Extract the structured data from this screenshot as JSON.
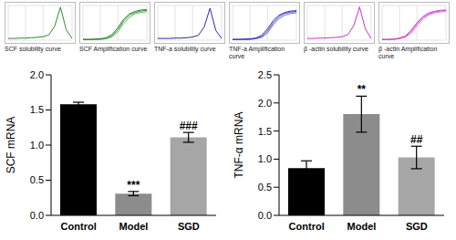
{
  "chart_data": [
    {
      "type": "line",
      "title": "SCF solubility curve",
      "x": [
        0,
        1,
        2,
        3,
        4,
        5,
        6,
        7,
        8,
        9,
        10,
        11
      ],
      "xlim": [
        0,
        11
      ],
      "ylim": [
        0,
        1
      ],
      "tick_labels": false,
      "grid": true,
      "series": [
        {
          "color": "#2e8b2e",
          "values": [
            0.05,
            0.05,
            0.06,
            0.06,
            0.07,
            0.08,
            0.1,
            0.15,
            0.4,
            0.95,
            0.3,
            0.05
          ]
        }
      ]
    },
    {
      "type": "line",
      "title": "SCF Amplification curve",
      "x": [
        0,
        1,
        2,
        3,
        4,
        5,
        6,
        7,
        8,
        9,
        10,
        11
      ],
      "xlim": [
        0,
        11
      ],
      "ylim": [
        0,
        1
      ],
      "tick_labels": false,
      "grid": true,
      "series": [
        {
          "color": "#3a9a3a",
          "values": [
            0.02,
            0.02,
            0.02,
            0.03,
            0.05,
            0.12,
            0.3,
            0.55,
            0.72,
            0.8,
            0.84,
            0.86
          ]
        },
        {
          "color": "#5cb85c",
          "values": [
            0.02,
            0.02,
            0.02,
            0.02,
            0.04,
            0.09,
            0.24,
            0.48,
            0.66,
            0.76,
            0.8,
            0.82
          ]
        },
        {
          "color": "#2e7d2e",
          "values": [
            0.02,
            0.02,
            0.03,
            0.04,
            0.07,
            0.16,
            0.36,
            0.6,
            0.76,
            0.83,
            0.87,
            0.88
          ]
        }
      ]
    },
    {
      "type": "line",
      "title": "TNF-a solubility curve",
      "x": [
        0,
        1,
        2,
        3,
        4,
        5,
        6,
        7,
        8,
        9,
        10,
        11
      ],
      "xlim": [
        0,
        11
      ],
      "ylim": [
        0,
        1
      ],
      "tick_labels": false,
      "grid": true,
      "series": [
        {
          "color": "#2a2aa0",
          "values": [
            0.05,
            0.05,
            0.05,
            0.06,
            0.06,
            0.07,
            0.09,
            0.14,
            0.38,
            0.92,
            0.28,
            0.05
          ]
        }
      ]
    },
    {
      "type": "line",
      "title": "TNF-a Amplification curve",
      "x": [
        0,
        1,
        2,
        3,
        4,
        5,
        6,
        7,
        8,
        9,
        10,
        11
      ],
      "xlim": [
        0,
        11
      ],
      "ylim": [
        0,
        1
      ],
      "tick_labels": false,
      "grid": true,
      "series": [
        {
          "color": "#4a4ac0",
          "values": [
            0.02,
            0.02,
            0.02,
            0.03,
            0.05,
            0.1,
            0.26,
            0.5,
            0.68,
            0.77,
            0.81,
            0.83
          ]
        },
        {
          "color": "#6a6ad8",
          "values": [
            0.02,
            0.02,
            0.02,
            0.02,
            0.04,
            0.08,
            0.2,
            0.44,
            0.62,
            0.72,
            0.77,
            0.79
          ]
        },
        {
          "color": "#3030a8",
          "values": [
            0.02,
            0.02,
            0.03,
            0.04,
            0.06,
            0.14,
            0.32,
            0.56,
            0.72,
            0.8,
            0.84,
            0.85
          ]
        }
      ]
    },
    {
      "type": "line",
      "title": "β -actin solubility curve",
      "x": [
        0,
        1,
        2,
        3,
        4,
        5,
        6,
        7,
        8,
        9,
        10,
        11
      ],
      "xlim": [
        0,
        11
      ],
      "ylim": [
        0,
        1
      ],
      "tick_labels": false,
      "grid": true,
      "series": [
        {
          "color": "#cc33cc",
          "values": [
            0.05,
            0.05,
            0.06,
            0.06,
            0.07,
            0.08,
            0.1,
            0.16,
            0.42,
            0.96,
            0.32,
            0.05
          ]
        }
      ]
    },
    {
      "type": "line",
      "title": "β -actin Amplification curve",
      "x": [
        0,
        1,
        2,
        3,
        4,
        5,
        6,
        7,
        8,
        9,
        10,
        11
      ],
      "xlim": [
        0,
        11
      ],
      "ylim": [
        0,
        1
      ],
      "tick_labels": false,
      "grid": true,
      "series": [
        {
          "color": "#dd55dd",
          "values": [
            0.02,
            0.02,
            0.03,
            0.05,
            0.1,
            0.24,
            0.46,
            0.64,
            0.75,
            0.81,
            0.84,
            0.85
          ]
        },
        {
          "color": "#e67ee6",
          "values": [
            0.02,
            0.02,
            0.02,
            0.04,
            0.08,
            0.2,
            0.4,
            0.6,
            0.72,
            0.78,
            0.81,
            0.83
          ]
        },
        {
          "color": "#c040c0",
          "values": [
            0.02,
            0.02,
            0.03,
            0.06,
            0.12,
            0.28,
            0.5,
            0.68,
            0.78,
            0.83,
            0.86,
            0.87
          ]
        }
      ]
    },
    {
      "type": "bar",
      "y_label": "SCF mRNA",
      "categories": [
        "Control",
        "Model",
        "SGD"
      ],
      "values": [
        1.58,
        0.31,
        1.11
      ],
      "errors": [
        0.03,
        0.03,
        0.07
      ],
      "annotations": [
        null,
        "***",
        "###"
      ],
      "colors": [
        "#000000",
        "#8c8c8c",
        "#a6a6a6"
      ],
      "grid": false,
      "ylim": [
        0,
        2
      ],
      "yticks": [
        {
          "value": 0,
          "label": "0.0"
        },
        0.5,
        {
          "value": 1,
          "label": "1.0"
        },
        1.5,
        {
          "value": 2,
          "label": "2.0"
        }
      ]
    },
    {
      "type": "bar",
      "y_label": "TNF-α mRNA",
      "categories": [
        "Control",
        "Model",
        "SGD"
      ],
      "values": [
        0.84,
        1.8,
        1.03
      ],
      "errors": [
        0.13,
        0.32,
        0.2
      ],
      "annotations": [
        null,
        "**",
        "##"
      ],
      "colors": [
        "#000000",
        "#8c8c8c",
        "#a6a6a6"
      ],
      "grid": false,
      "ylim": [
        0,
        2.5
      ],
      "yticks": [
        {
          "value": 0,
          "label": "0.0"
        },
        0.5,
        {
          "value": 1,
          "label": "1.0"
        },
        1.5,
        {
          "value": 2,
          "label": "2.0"
        },
        2.5
      ]
    }
  ]
}
